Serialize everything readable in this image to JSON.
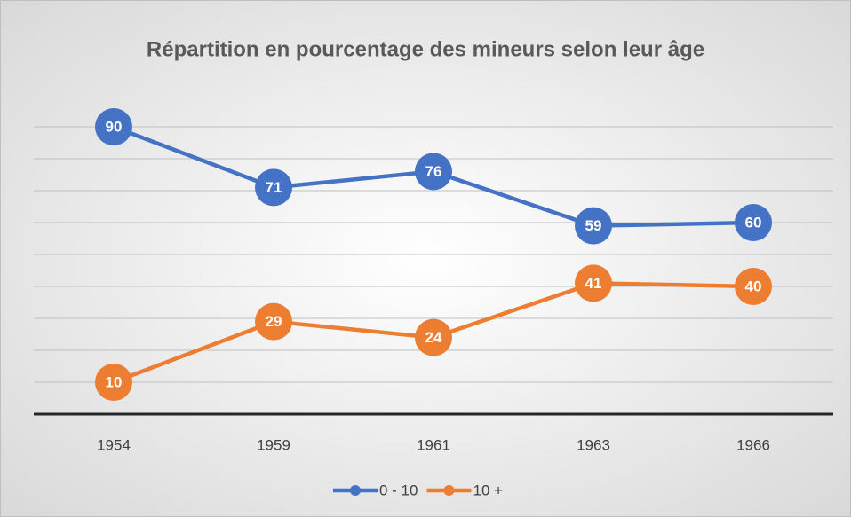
{
  "chart_data": {
    "type": "line",
    "title": "Répartition en pourcentage des mineurs selon leur âge",
    "categories": [
      "1954",
      "1959",
      "1961",
      "1963",
      "1966"
    ],
    "series": [
      {
        "name": "0 - 10",
        "color": "#4472c4",
        "values": [
          90,
          71,
          76,
          59,
          60
        ]
      },
      {
        "name": "10 +",
        "color": "#ed7d31",
        "values": [
          10,
          29,
          24,
          41,
          40
        ]
      }
    ],
    "ylim": [
      0,
      100
    ],
    "yticks": [
      0,
      10,
      20,
      30,
      40,
      50,
      60,
      70,
      80,
      90
    ],
    "grid": true,
    "legend": "bottom"
  }
}
